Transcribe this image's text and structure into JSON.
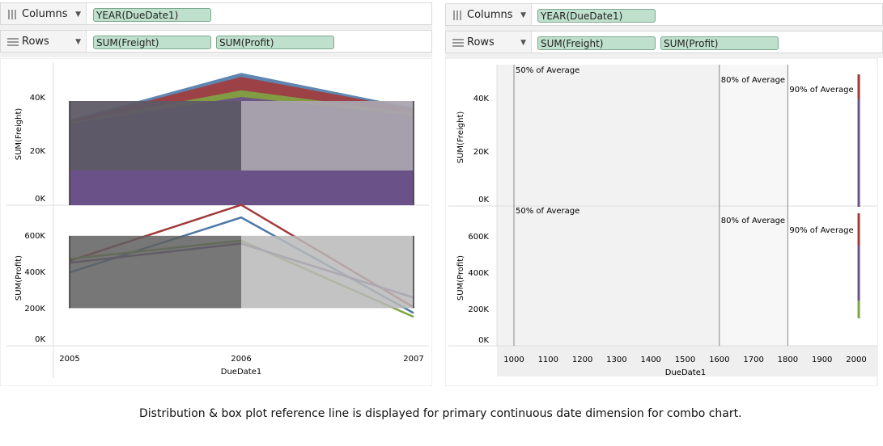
{
  "left": {
    "columns_label": "Columns",
    "rows_label": "Rows",
    "columns_pill": "YEAR(DueDate1)",
    "rows_pills": [
      "SUM(Freight)",
      "SUM(Profit)"
    ],
    "chart": {
      "top_ylabel": "SUM(Freight)",
      "bottom_ylabel": "SUM(Profit)",
      "xlabel": "DueDate1",
      "x_ticks": [
        "2005",
        "2006",
        "2007"
      ],
      "top_y_ticks": [
        "40K",
        "20K",
        "0K"
      ],
      "bottom_y_ticks": [
        "600K",
        "400K",
        "200K",
        "0K"
      ]
    }
  },
  "right": {
    "columns_label": "Columns",
    "rows_label": "Rows",
    "columns_pill": "YEAR(DueDate1)",
    "rows_pills": [
      "SUM(Freight)",
      "SUM(Profit)"
    ],
    "chart": {
      "top_ylabel": "SUM(Freight)",
      "bottom_ylabel": "SUM(Profit)",
      "xlabel": "DueDate1",
      "x_ticks": [
        "1000",
        "1100",
        "1200",
        "1300",
        "1400",
        "1500",
        "1600",
        "1700",
        "1800",
        "1900",
        "2000"
      ],
      "top_y_ticks": [
        "40K",
        "20K",
        "0K"
      ],
      "bottom_y_ticks": [
        "600K",
        "400K",
        "200K",
        "0K"
      ],
      "ref_labels": [
        "50% of Average",
        "80% of Average",
        "90% of Average"
      ]
    }
  },
  "caption": "Distribution & box plot reference line is displayed for primary continuous date dimension for combo chart.",
  "chart_data": [
    {
      "type": "area",
      "panel": "left-top",
      "x": [
        2005,
        2006,
        2007
      ],
      "ylabel": "SUM(Freight)",
      "xlabel": "DueDate1",
      "ylim": [
        0,
        52000
      ],
      "colors": [
        "#4e79a7",
        "#a33a3a",
        "#7ea641",
        "#6a4e8c"
      ],
      "series": [
        {
          "values": [
            32000,
            49500,
            36500
          ]
        },
        {
          "values": [
            31500,
            48000,
            36000
          ]
        },
        {
          "values": [
            31000,
            43000,
            34500
          ]
        },
        {
          "values": [
            30500,
            40500,
            33500
          ]
        }
      ],
      "reference_band": {
        "ymin": 13000,
        "ymax": 39000
      }
    },
    {
      "type": "line",
      "panel": "left-bottom",
      "x": [
        2005,
        2006,
        2007
      ],
      "ylabel": "SUM(Profit)",
      "xlabel": "DueDate1",
      "ylim": [
        0,
        720000
      ],
      "colors": [
        "#a33a3a",
        "#4e79a7",
        "#7ea641",
        "#6a4e8c"
      ],
      "series": [
        {
          "values": [
            440000,
            730000,
            200000
          ]
        },
        {
          "values": [
            380000,
            665000,
            170000
          ]
        },
        {
          "values": [
            450000,
            545000,
            150000
          ]
        },
        {
          "values": [
            430000,
            530000,
            250000
          ]
        }
      ],
      "reference_band": {
        "ymin": 195000,
        "ymax": 570000
      }
    },
    {
      "type": "line",
      "panel": "right",
      "x_range": [
        1000,
        2000
      ],
      "reference_lines": [
        {
          "label": "50% of Average",
          "x": 1000
        },
        {
          "label": "80% of Average",
          "x": 1600
        },
        {
          "label": "90% of Average",
          "x": 1800
        }
      ]
    }
  ]
}
